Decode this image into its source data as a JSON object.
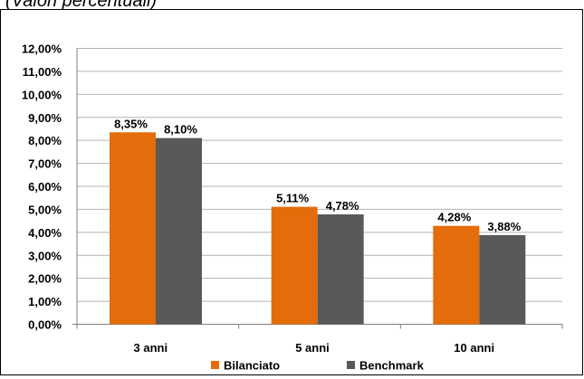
{
  "caption": "(Valori percentuali)",
  "chart_data": {
    "type": "bar",
    "categories": [
      "3 anni",
      "5 anni",
      "10 anni"
    ],
    "series": [
      {
        "name": "Bilanciato",
        "values": [
          8.35,
          5.11,
          4.28
        ],
        "color": "#E46C0A"
      },
      {
        "name": "Benchmark",
        "values": [
          8.1,
          4.78,
          3.88
        ],
        "color": "#595959"
      }
    ],
    "data_labels": [
      [
        "8,35%",
        "5,11%",
        "4,28%"
      ],
      [
        "8,10%",
        "4,78%",
        "3,88%"
      ]
    ],
    "y_ticks": [
      "0,00%",
      "1,00%",
      "2,00%",
      "3,00%",
      "4,00%",
      "5,00%",
      "6,00%",
      "7,00%",
      "8,00%",
      "9,00%",
      "10,00%",
      "11,00%",
      "12,00%"
    ],
    "ylim": [
      0,
      12
    ],
    "grid": true,
    "legend": "bottom",
    "title": "",
    "xlabel": "",
    "ylabel": ""
  }
}
